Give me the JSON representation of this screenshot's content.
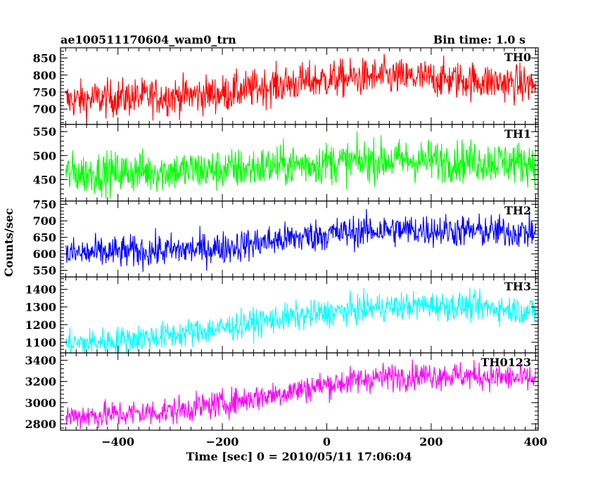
{
  "title": "ae100511170604_wam0_trn",
  "bin_time": "Bin time: 1.0 s",
  "xlabel": "Time [sec] 0 = 2010/05/11 17:06:04",
  "ylabel": "Counts/sec",
  "chart_data": {
    "type": "line",
    "x_range": [
      -510,
      405
    ],
    "x_ticks": [
      -400,
      -200,
      0,
      200,
      400
    ],
    "x_tick_labels": [
      "−400",
      "−200",
      "0",
      "200",
      "400"
    ],
    "grid": false,
    "panels": [
      {
        "name": "TH0",
        "color": "#ff0000",
        "ylim": [
          655,
          880
        ],
        "y_ticks": [
          700,
          750,
          800,
          850
        ],
        "trend": [
          [
            -500,
            725
          ],
          [
            -400,
            733
          ],
          [
            -300,
            738
          ],
          [
            -200,
            745
          ],
          [
            -100,
            770
          ],
          [
            0,
            787
          ],
          [
            100,
            795
          ],
          [
            200,
            790
          ],
          [
            300,
            782
          ],
          [
            400,
            770
          ]
        ],
        "noise": 28
      },
      {
        "name": "TH1",
        "color": "#00ff00",
        "ylim": [
          405,
          565
        ],
        "y_ticks": [
          450,
          500,
          550
        ],
        "trend": [
          [
            -500,
            462
          ],
          [
            -400,
            465
          ],
          [
            -300,
            468
          ],
          [
            -200,
            470
          ],
          [
            -100,
            478
          ],
          [
            0,
            485
          ],
          [
            100,
            490
          ],
          [
            200,
            490
          ],
          [
            300,
            488
          ],
          [
            400,
            485
          ]
        ],
        "noise": 22
      },
      {
        "name": "TH2",
        "color": "#0000ff",
        "ylim": [
          530,
          760
        ],
        "y_ticks": [
          550,
          600,
          650,
          700,
          750
        ],
        "trend": [
          [
            -500,
            600
          ],
          [
            -400,
            605
          ],
          [
            -300,
            610
          ],
          [
            -200,
            618
          ],
          [
            -100,
            640
          ],
          [
            0,
            660
          ],
          [
            100,
            672
          ],
          [
            200,
            672
          ],
          [
            300,
            668
          ],
          [
            400,
            665
          ]
        ],
        "noise": 25
      },
      {
        "name": "TH3",
        "color": "#00ffff",
        "ylim": [
          1040,
          1470
        ],
        "y_ticks": [
          1100,
          1200,
          1300,
          1400
        ],
        "trend": [
          [
            -500,
            1090
          ],
          [
            -400,
            1110
          ],
          [
            -300,
            1140
          ],
          [
            -200,
            1180
          ],
          [
            -100,
            1230
          ],
          [
            0,
            1265
          ],
          [
            100,
            1300
          ],
          [
            200,
            1310
          ],
          [
            300,
            1300
          ],
          [
            400,
            1275
          ]
        ],
        "noise": 40
      },
      {
        "name": "TH0123",
        "color": "#ff00ff",
        "ylim": [
          2740,
          3470
        ],
        "y_ticks": [
          2800,
          3000,
          3200,
          3400
        ],
        "trend": [
          [
            -500,
            2870
          ],
          [
            -400,
            2890
          ],
          [
            -300,
            2920
          ],
          [
            -200,
            2990
          ],
          [
            -100,
            3080
          ],
          [
            0,
            3170
          ],
          [
            100,
            3240
          ],
          [
            200,
            3260
          ],
          [
            300,
            3250
          ],
          [
            400,
            3220
          ]
        ],
        "noise": 65
      }
    ]
  }
}
